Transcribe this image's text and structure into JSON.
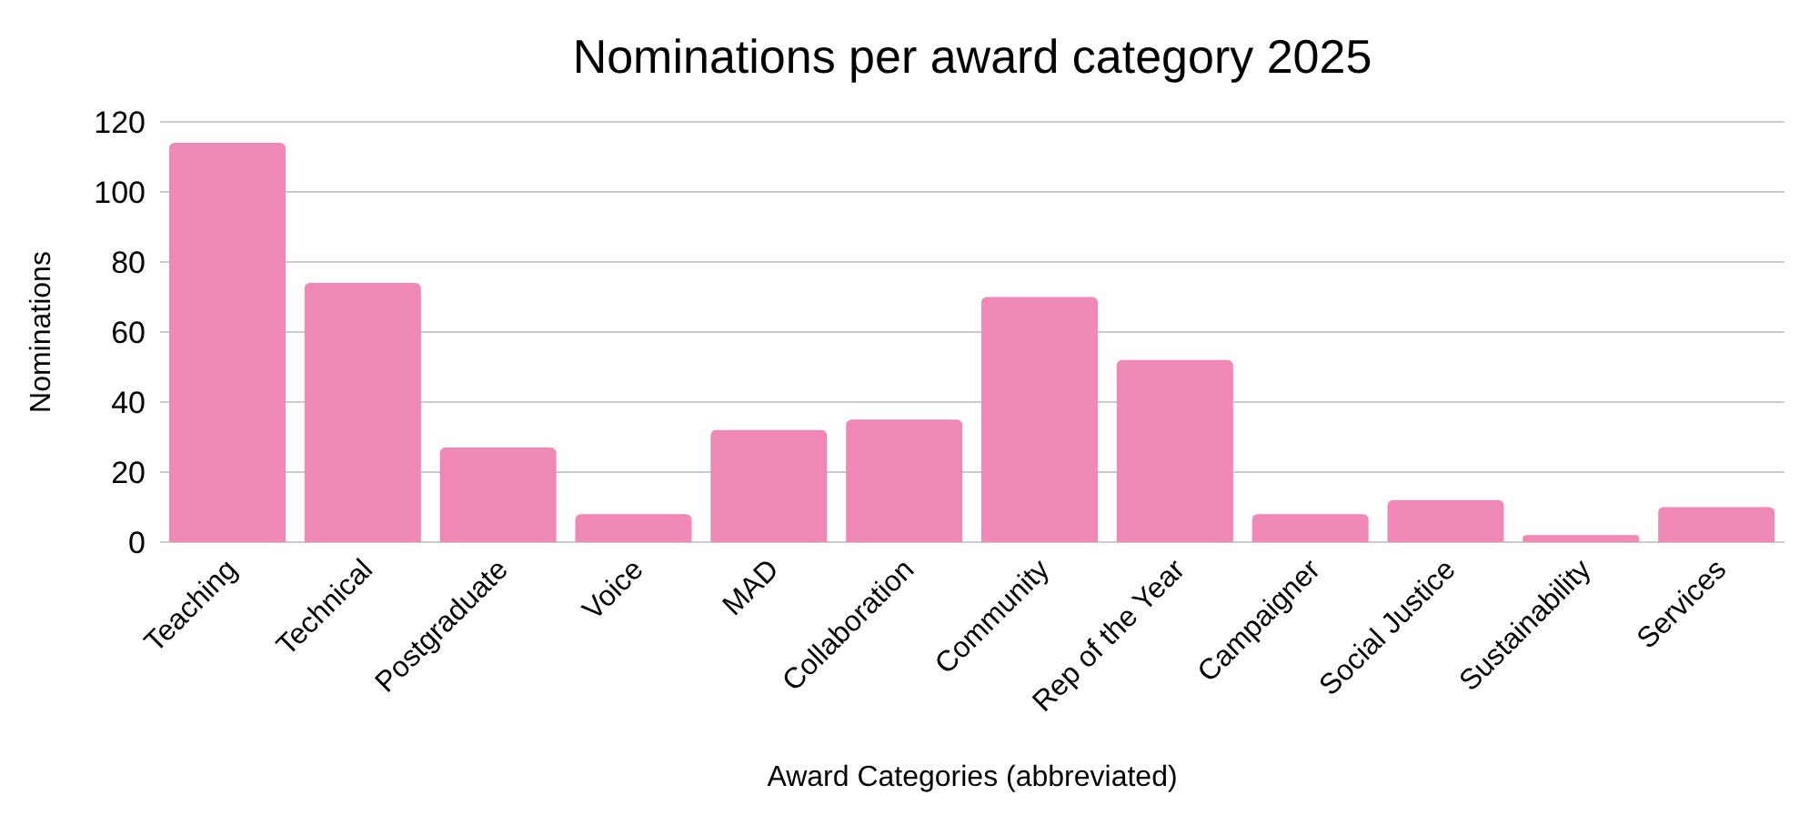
{
  "chart_data": {
    "type": "bar",
    "title": "Nominations per award category 2025",
    "xlabel": "Award Categories (abbreviated)",
    "ylabel": "Nominations",
    "categories": [
      "Teaching",
      "Technical",
      "Postgraduate",
      "Voice",
      "MAD",
      "Collaboration",
      "Community",
      "Rep of the Year",
      "Campaigner",
      "Social Justice",
      "Sustainability",
      "Services"
    ],
    "values": [
      114,
      74,
      27,
      8,
      32,
      35,
      70,
      52,
      8,
      12,
      2,
      10
    ],
    "color": "#f088b6",
    "ylim": [
      0,
      120
    ],
    "yticks": [
      0,
      20,
      40,
      60,
      80,
      100,
      120
    ],
    "grid": "y"
  }
}
